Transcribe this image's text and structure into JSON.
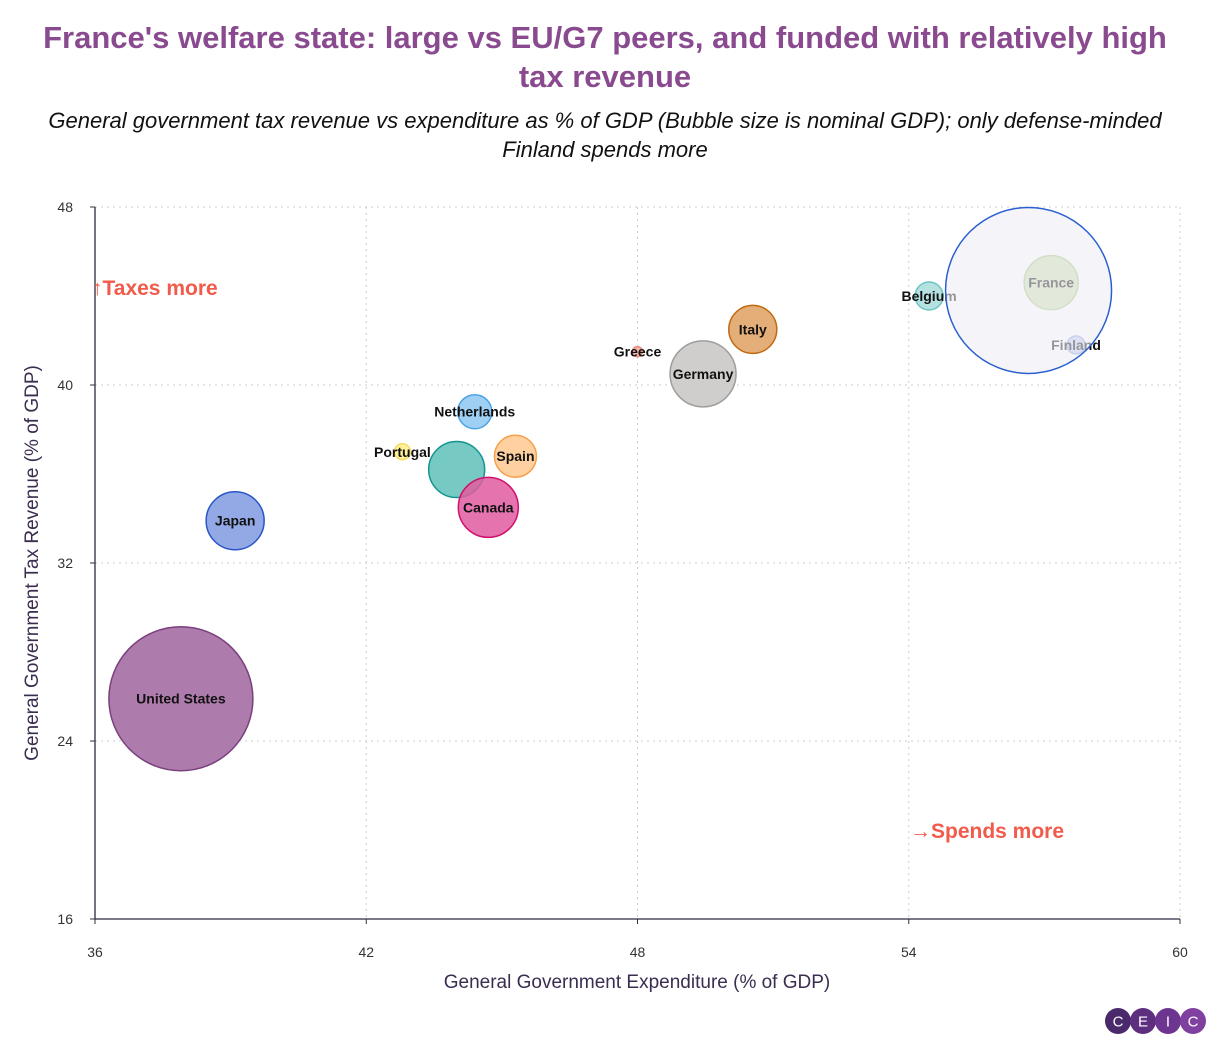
{
  "chart_data": {
    "type": "scatter",
    "title": "France's welfare state: large vs EU/G7 peers, and funded with relatively high tax revenue",
    "subtitle": "General government tax revenue vs expenditure as % of GDP (Bubble size is nominal GDP); only defense-minded Finland spends more",
    "xlabel": "General Government Expenditure (% of GDP)",
    "ylabel": "General Government Tax Revenue (% of GDP)",
    "xlim": [
      36,
      60
    ],
    "ylim": [
      16,
      48
    ],
    "xticks": [
      "36",
      "42",
      "48",
      "54",
      "60"
    ],
    "yticks": [
      "16",
      "24",
      "32",
      "40",
      "48"
    ],
    "grid": true,
    "annotations": {
      "taxes_more": "↑Taxes more",
      "spends_more": "→Spends more"
    },
    "points": [
      {
        "name": "United States",
        "x": 37.9,
        "y": 25.9,
        "size": 72,
        "color": "#a0649f",
        "stroke": "#7a3f7c"
      },
      {
        "name": "Japan",
        "x": 39.1,
        "y": 33.9,
        "size": 29,
        "color": "#7f9ae0",
        "stroke": "#2a55c8"
      },
      {
        "name": "Portugal",
        "x": 42.8,
        "y": 37.0,
        "size": 8,
        "color": "#fff08a",
        "stroke": "#f5dc5a"
      },
      {
        "name": "Netherlands",
        "x": 44.4,
        "y": 38.8,
        "size": 17,
        "color": "#8ec8f2",
        "stroke": "#4aa3e6"
      },
      {
        "name": "",
        "x": 44.0,
        "y": 36.2,
        "size": 28,
        "color": "#5fbfba",
        "stroke": "#13958f"
      },
      {
        "name": "Spain",
        "x": 45.3,
        "y": 36.8,
        "size": 21,
        "color": "#ffc98f",
        "stroke": "#f5a04a"
      },
      {
        "name": "Canada",
        "x": 44.7,
        "y": 34.5,
        "size": 30,
        "color": "#e05ca0",
        "stroke": "#d0106e"
      },
      {
        "name": "Greece",
        "x": 48.0,
        "y": 41.5,
        "size": 5,
        "color": "#f2a8a0",
        "stroke": "#e88a80"
      },
      {
        "name": "Germany",
        "x": 49.45,
        "y": 40.5,
        "size": 33,
        "color": "#c8c6c4",
        "stroke": "#a09e9c"
      },
      {
        "name": "Italy",
        "x": 50.55,
        "y": 42.5,
        "size": 24,
        "color": "#dea060",
        "stroke": "#c06a10"
      },
      {
        "name": "Belgium",
        "x": 54.45,
        "y": 44.0,
        "size": 14,
        "color": "#a8dcdc",
        "stroke": "#6cc4c4"
      },
      {
        "name": "France",
        "x": 57.15,
        "y": 44.6,
        "size": 27,
        "color": "#c8dca8",
        "stroke": "#a8c880"
      },
      {
        "name": "Finland",
        "x": 57.7,
        "y": 41.8,
        "size": 9,
        "color": "#b8c4ec",
        "stroke": "#90a4e0"
      },
      {
        "name": "",
        "x": 56.65,
        "y": 44.25,
        "size": 83,
        "color": "#eeeef5",
        "stroke": "#2a5fd0",
        "overlay": true
      }
    ]
  },
  "logo": {
    "letters": [
      "C",
      "E",
      "I",
      "C"
    ],
    "colors": [
      "#4a2a6a",
      "#5e2f7e",
      "#6e3590",
      "#8040a0"
    ]
  }
}
